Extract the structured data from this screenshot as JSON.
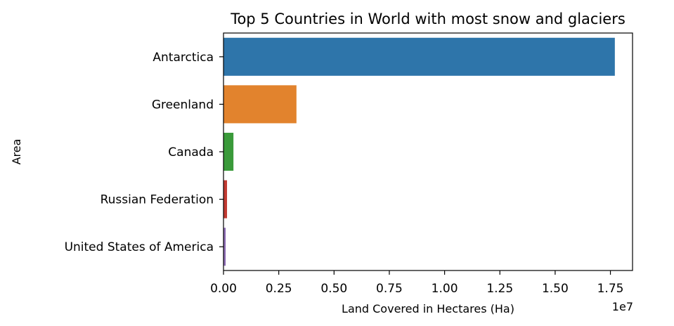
{
  "chart_data": {
    "type": "bar",
    "orientation": "horizontal",
    "title": "Top 5 Countries in World with most snow and glaciers",
    "xlabel": "Land Covered in Hectares (Ha)",
    "ylabel": "Area",
    "x_offset_label": "1e7",
    "xlim": [
      0,
      18500000
    ],
    "xticks": [
      0,
      2500000,
      5000000,
      7500000,
      10000000,
      12500000,
      15000000,
      17500000
    ],
    "xtick_labels": [
      "0.00",
      "0.25",
      "0.50",
      "0.75",
      "1.00",
      "1.25",
      "1.50",
      "1.75"
    ],
    "categories": [
      "Antarctica",
      "Greenland",
      "Canada",
      "Russian Federation",
      "United States of America"
    ],
    "values": [
      17700000,
      3300000,
      450000,
      160000,
      100000
    ],
    "colors": [
      "#2e75aa",
      "#e2832d",
      "#3a9a3a",
      "#c23b32",
      "#9170b8"
    ],
    "grid": false,
    "legend": "none"
  }
}
